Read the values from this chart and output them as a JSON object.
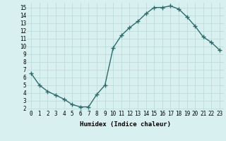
{
  "x": [
    0,
    1,
    2,
    3,
    4,
    5,
    6,
    7,
    8,
    9,
    10,
    11,
    12,
    13,
    14,
    15,
    16,
    17,
    18,
    19,
    20,
    21,
    22,
    23
  ],
  "y": [
    6.5,
    5.0,
    4.2,
    3.7,
    3.2,
    2.5,
    2.2,
    2.2,
    3.8,
    5.0,
    9.8,
    11.4,
    12.4,
    13.2,
    14.2,
    15.0,
    15.0,
    15.2,
    14.8,
    13.8,
    12.6,
    11.2,
    10.5,
    9.5
  ],
  "line_color": "#2e6b6b",
  "marker": "+",
  "marker_size": 4,
  "marker_linewidth": 1.0,
  "line_width": 1.0,
  "bg_color": "#d9f0f0",
  "grid_color": "#b8d8d8",
  "xlabel": "Humidex (Indice chaleur)",
  "xlim": [
    -0.5,
    23.5
  ],
  "ylim": [
    1.8,
    15.6
  ],
  "yticks": [
    2,
    3,
    4,
    5,
    6,
    7,
    8,
    9,
    10,
    11,
    12,
    13,
    14,
    15
  ],
  "xticks": [
    0,
    1,
    2,
    3,
    4,
    5,
    6,
    7,
    8,
    9,
    10,
    11,
    12,
    13,
    14,
    15,
    16,
    17,
    18,
    19,
    20,
    21,
    22,
    23
  ],
  "label_fontsize": 6.5,
  "tick_fontsize": 5.5
}
